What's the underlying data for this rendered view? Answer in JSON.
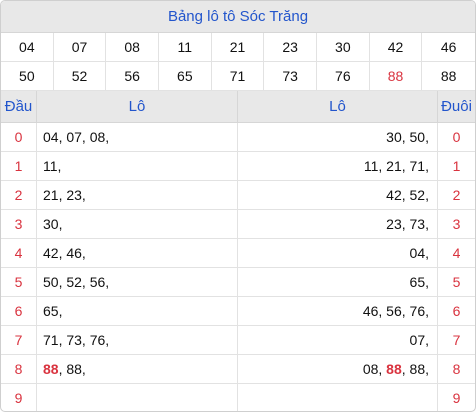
{
  "title": "Bảng lô tô Sóc Trăng",
  "numbers": [
    {
      "v": "04",
      "red": false
    },
    {
      "v": "07",
      "red": false
    },
    {
      "v": "08",
      "red": false
    },
    {
      "v": "11",
      "red": false
    },
    {
      "v": "21",
      "red": false
    },
    {
      "v": "23",
      "red": false
    },
    {
      "v": "30",
      "red": false
    },
    {
      "v": "42",
      "red": false
    },
    {
      "v": "46",
      "red": false
    },
    {
      "v": "50",
      "red": false
    },
    {
      "v": "52",
      "red": false
    },
    {
      "v": "56",
      "red": false
    },
    {
      "v": "65",
      "red": false
    },
    {
      "v": "71",
      "red": false
    },
    {
      "v": "73",
      "red": false
    },
    {
      "v": "76",
      "red": false
    },
    {
      "v": "88",
      "red": true
    },
    {
      "v": "88",
      "red": false
    }
  ],
  "headers": {
    "dau": "Đầu",
    "lo_left": "Lô",
    "lo_right": "Lô",
    "duoi": "Đuôi"
  },
  "rows": [
    {
      "dau": "0",
      "left": [
        {
          "t": "04, 07, 08,"
        }
      ],
      "right": [
        {
          "t": "30, 50,"
        }
      ],
      "duoi": "0"
    },
    {
      "dau": "1",
      "left": [
        {
          "t": "11,"
        }
      ],
      "right": [
        {
          "t": "11, 21, 71,"
        }
      ],
      "duoi": "1"
    },
    {
      "dau": "2",
      "left": [
        {
          "t": "21, 23,"
        }
      ],
      "right": [
        {
          "t": "42, 52,"
        }
      ],
      "duoi": "2"
    },
    {
      "dau": "3",
      "left": [
        {
          "t": "30,"
        }
      ],
      "right": [
        {
          "t": "23, 73,"
        }
      ],
      "duoi": "3"
    },
    {
      "dau": "4",
      "left": [
        {
          "t": "42, 46,"
        }
      ],
      "right": [
        {
          "t": "04,"
        }
      ],
      "duoi": "4"
    },
    {
      "dau": "5",
      "left": [
        {
          "t": "50, 52, 56,"
        }
      ],
      "right": [
        {
          "t": "65,"
        }
      ],
      "duoi": "5"
    },
    {
      "dau": "6",
      "left": [
        {
          "t": "65,"
        }
      ],
      "right": [
        {
          "t": "46, 56, 76,"
        }
      ],
      "duoi": "6"
    },
    {
      "dau": "7",
      "left": [
        {
          "t": "71, 73, 76,"
        }
      ],
      "right": [
        {
          "t": "07,"
        }
      ],
      "duoi": "7"
    },
    {
      "dau": "8",
      "left": [
        {
          "t": "88",
          "hl": true
        },
        {
          "t": ", 88,"
        }
      ],
      "right": [
        {
          "t": "08, "
        },
        {
          "t": "88",
          "hl": true
        },
        {
          "t": ", 88,"
        }
      ],
      "duoi": "8"
    },
    {
      "dau": "9",
      "left": [],
      "right": [],
      "duoi": "9"
    }
  ],
  "colors": {
    "accent": "#2255cc",
    "red": "#d9333f",
    "header_bg": "#e8e8e8"
  }
}
